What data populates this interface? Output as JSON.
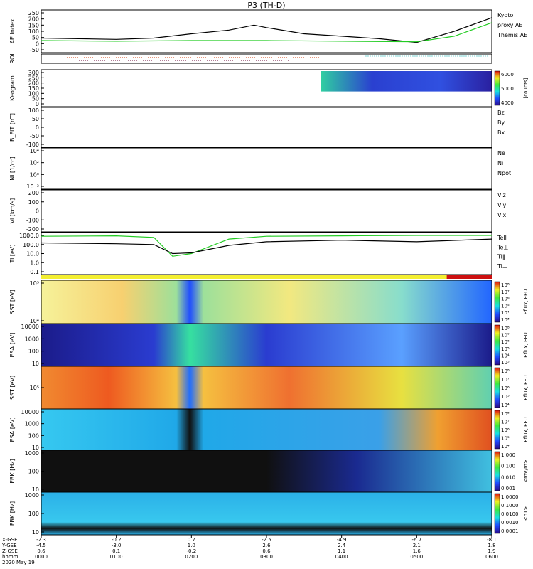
{
  "title": "P3 (TH-D)",
  "date_label": "2020 May 19",
  "panels": [
    {
      "id": "ae",
      "ylabel": "AE Index",
      "yticks": [
        "250",
        "200",
        "150",
        "100",
        "50",
        "0",
        "-50"
      ],
      "legend": [
        {
          "text": "Kyoto",
          "color": "#22cc22"
        },
        {
          "text": "proxy AE",
          "color": "#22cc22"
        },
        {
          "text": "Themis AE",
          "color": "#000000"
        }
      ]
    },
    {
      "id": "roi",
      "ylabel": "ROI",
      "yticks": [],
      "legend": []
    },
    {
      "id": "keogram",
      "ylabel": "Keogram",
      "yticks": [
        "300",
        "250",
        "200",
        "150",
        "100",
        "50",
        "0"
      ],
      "colorbar": {
        "ticks": [
          "6000",
          "5000",
          "4000"
        ],
        "label": "[counts]"
      },
      "legend": []
    },
    {
      "id": "bfield",
      "ylabel": "B_FIT [nT]",
      "yticks": [
        "100",
        "50",
        "0",
        "-50",
        "-100"
      ],
      "legend": [
        {
          "text": "Bz",
          "color": "#cc0000"
        },
        {
          "text": "By",
          "color": "#22cc22"
        },
        {
          "text": "Bx",
          "color": "#0000cc"
        }
      ]
    },
    {
      "id": "density",
      "ylabel": "Ni [1/cc]",
      "yticks": [
        "10⁴",
        "10²",
        "10⁰",
        "10⁻²"
      ],
      "legend": [
        {
          "text": "Ne",
          "color": "#cc0000"
        },
        {
          "text": "Ni",
          "color": "#000000"
        },
        {
          "text": "Npot",
          "color": "#0000cc"
        }
      ]
    },
    {
      "id": "velocity",
      "ylabel": "Vi [km/s]",
      "yticks": [
        "200",
        "100",
        "0",
        "-100",
        "-200"
      ],
      "legend": [
        {
          "text": "Viz",
          "color": "#cc0000"
        },
        {
          "text": "Viy",
          "color": "#22cc22"
        },
        {
          "text": "Vix",
          "color": "#0000cc"
        }
      ]
    },
    {
      "id": "temperature",
      "ylabel": "Ti [eV]",
      "yticks": [
        "1000.0",
        "100.0",
        "10.0",
        "1.0",
        "0.1"
      ],
      "legend": [
        {
          "text": "Tell",
          "color": "#000000"
        },
        {
          "text": "Te⊥",
          "color": "#cc0000"
        },
        {
          "text": "Ti‖",
          "color": "#22cc22"
        },
        {
          "text": "Ti⊥",
          "color": "#0000cc"
        }
      ]
    },
    {
      "id": "sst_e",
      "ylabel": "SST [eV]",
      "yticks": [
        "10⁵",
        "10⁴"
      ],
      "colorbar": {
        "ticks": [
          "10⁸",
          "10⁷",
          "10⁶",
          "10⁵",
          "10⁴",
          "10³"
        ],
        "label": "Eflux, EFU"
      },
      "legend": []
    },
    {
      "id": "esa_e",
      "ylabel": "ESA [eV]",
      "yticks": [
        "10000",
        "1000",
        "100",
        "10"
      ],
      "colorbar": {
        "ticks": [
          "10⁸",
          "10⁷",
          "10⁶",
          "10⁵",
          "10⁴",
          "10³"
        ],
        "label": "Eflux, EFU"
      },
      "legend": []
    },
    {
      "id": "sst_i",
      "ylabel": "SST [eV]",
      "yticks": [
        "10⁵"
      ],
      "colorbar": {
        "ticks": [
          "10⁸",
          "10⁷",
          "10⁶",
          "10⁵",
          "10⁴"
        ],
        "label": "Eflux, EFU"
      },
      "legend": []
    },
    {
      "id": "esa_i",
      "ylabel": "ESA [eV]",
      "yticks": [
        "10000",
        "1000",
        "100",
        "10"
      ],
      "colorbar": {
        "ticks": [
          "10⁸",
          "10⁷",
          "10⁶",
          "10⁵",
          "10⁴"
        ],
        "label": "Eflux, EFU"
      },
      "legend": []
    },
    {
      "id": "fbk_e",
      "ylabel": "FBK [Hz]",
      "yticks": [
        "1000",
        "100",
        "10"
      ],
      "colorbar": {
        "ticks": [
          "1.000",
          "0.100",
          "0.010",
          "0.001"
        ],
        "label": "<mV/m>"
      },
      "legend": []
    },
    {
      "id": "fbk_b",
      "ylabel": "FBK [Hz]",
      "yticks": [
        "1000",
        "100",
        "10"
      ],
      "colorbar": {
        "ticks": [
          "1.0000",
          "0.1000",
          "0.0100",
          "0.0010",
          "0.0001"
        ],
        "label": "<nT>"
      },
      "legend": []
    }
  ],
  "xaxis": {
    "row_labels": [
      "X-GSE",
      "Y-GSE",
      "Z-GSE",
      "hhmm"
    ],
    "ticks": [
      {
        "x": "-2.3",
        "y": "-4.5",
        "z": "0.6",
        "t": "0000"
      },
      {
        "x": "-0.2",
        "y": "-3.0",
        "z": "0.1",
        "t": "0100"
      },
      {
        "x": "0.7",
        "y": "1.0",
        "z": "-0.2",
        "t": "0200"
      },
      {
        "x": "-2.5",
        "y": "2.6",
        "z": "0.6",
        "t": "0300"
      },
      {
        "x": "-4.9",
        "y": "2.4",
        "z": "1.1",
        "t": "0400"
      },
      {
        "x": "-6.7",
        "y": "2.1",
        "z": "1.6",
        "t": "0500"
      },
      {
        "x": "-8.1",
        "y": "1.8",
        "z": "1.9",
        "t": "0600"
      }
    ]
  },
  "chart_data": {
    "type": "line",
    "title": "P3 (TH-D)",
    "x_unit": "hhmm",
    "x_range": [
      "0000",
      "0600"
    ],
    "series": [
      {
        "panel": "ae",
        "name": "Themis AE",
        "x": [
          "0000",
          "0030",
          "0100",
          "0130",
          "0200",
          "0230",
          "0250",
          "0300",
          "0330",
          "0400",
          "0430",
          "0500",
          "0530",
          "0600"
        ],
        "values": [
          45,
          40,
          35,
          45,
          80,
          110,
          150,
          130,
          80,
          60,
          40,
          10,
          100,
          210
        ]
      },
      {
        "panel": "ae",
        "name": "Kyoto proxy AE",
        "x": [
          "0000",
          "0100",
          "0200",
          "0300",
          "0400",
          "0500",
          "0530",
          "0600"
        ],
        "values": [
          25,
          20,
          25,
          25,
          20,
          15,
          60,
          170
        ]
      },
      {
        "panel": "temperature",
        "name": "Ti‖",
        "x": [
          "0000",
          "0100",
          "0130",
          "0145",
          "0200",
          "0230",
          "0300",
          "0400",
          "0500",
          "0600"
        ],
        "values": [
          800,
          900,
          600,
          5,
          10,
          400,
          800,
          900,
          1000,
          1000
        ]
      },
      {
        "panel": "temperature",
        "name": "Tell",
        "x": [
          "0000",
          "0100",
          "0130",
          "0145",
          "0200",
          "0230",
          "0300",
          "0400",
          "0500",
          "0600"
        ],
        "values": [
          150,
          120,
          100,
          10,
          12,
          80,
          200,
          300,
          200,
          400
        ]
      }
    ]
  }
}
